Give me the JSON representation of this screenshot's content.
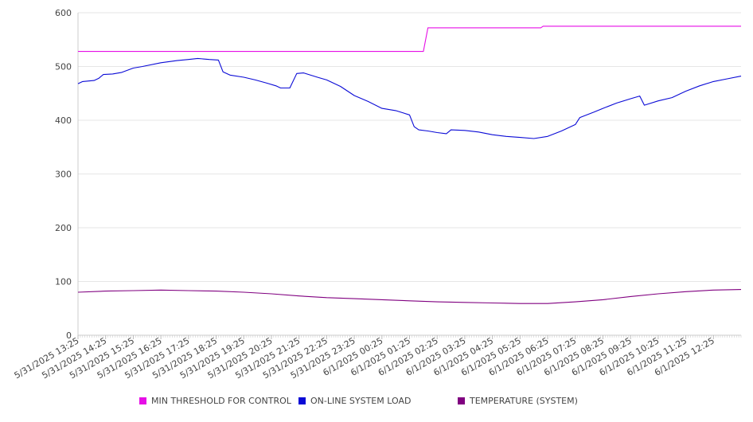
{
  "chart_data": {
    "type": "line",
    "title": "",
    "xlabel": "",
    "ylabel": "",
    "ylim": [
      0,
      600
    ],
    "yticks": [
      0,
      100,
      200,
      300,
      400,
      500,
      600
    ],
    "grid": true,
    "legend_position": "bottom",
    "xlim": [
      "5/31/2025 13:25",
      "6/1/2025 13:25"
    ],
    "tick_labels": [
      "5/31/2025 13:25",
      "5/31/2025 14:25",
      "5/31/2025 15:25",
      "5/31/2025 16:25",
      "5/31/2025 17:25",
      "5/31/2025 18:25",
      "5/31/2025 19:25",
      "5/31/2025 20:25",
      "5/31/2025 21:25",
      "5/31/2025 22:25",
      "5/31/2025 23:25",
      "6/1/2025 00:25",
      "6/1/2025 01:25",
      "6/1/2025 02:25",
      "6/1/2025 03:25",
      "6/1/2025 04:25",
      "6/1/2025 05:25",
      "6/1/2025 06:25",
      "6/1/2025 07:25",
      "6/1/2025 08:25",
      "6/1/2025 09:25",
      "6/1/2025 10:25",
      "6/1/2025 11:25",
      "6/1/2025 12:25"
    ],
    "series": [
      {
        "name": "MIN THRESHOLD FOR CONTROL",
        "color": "#e60fe6",
        "points": [
          [
            "5/31/2025 13:25",
            528
          ],
          [
            "6/1/2025 01:55",
            528
          ],
          [
            "6/1/2025 02:05",
            572
          ],
          [
            "6/1/2025 06:10",
            572
          ],
          [
            "6/1/2025 06:15",
            575
          ],
          [
            "6/1/2025 13:25",
            575
          ]
        ]
      },
      {
        "name": "ON-LINE SYSTEM LOAD",
        "color": "#0a0ad6",
        "points": [
          [
            "5/31/2025 13:25",
            468
          ],
          [
            "5/31/2025 13:35",
            472
          ],
          [
            "5/31/2025 14:00",
            474
          ],
          [
            "5/31/2025 14:10",
            478
          ],
          [
            "5/31/2025 14:20",
            485
          ],
          [
            "5/31/2025 14:40",
            486
          ],
          [
            "5/31/2025 15:00",
            489
          ],
          [
            "5/31/2025 15:25",
            497
          ],
          [
            "5/31/2025 15:45",
            500
          ],
          [
            "5/31/2025 16:25",
            507
          ],
          [
            "5/31/2025 17:00",
            511
          ],
          [
            "5/31/2025 17:25",
            513
          ],
          [
            "5/31/2025 17:45",
            515
          ],
          [
            "5/31/2025 18:10",
            513
          ],
          [
            "5/31/2025 18:30",
            512
          ],
          [
            "5/31/2025 18:40",
            490
          ],
          [
            "5/31/2025 18:55",
            484
          ],
          [
            "5/31/2025 19:25",
            480
          ],
          [
            "5/31/2025 19:50",
            475
          ],
          [
            "5/31/2025 20:15",
            469
          ],
          [
            "5/31/2025 20:35",
            464
          ],
          [
            "5/31/2025 20:45",
            460
          ],
          [
            "5/31/2025 21:05",
            460
          ],
          [
            "5/31/2025 21:20",
            487
          ],
          [
            "5/31/2025 21:35",
            488
          ],
          [
            "5/31/2025 22:05",
            480
          ],
          [
            "5/31/2025 22:25",
            475
          ],
          [
            "5/31/2025 22:55",
            463
          ],
          [
            "5/31/2025 23:25",
            446
          ],
          [
            "5/31/2025 23:55",
            435
          ],
          [
            "6/1/2025 00:25",
            422
          ],
          [
            "6/1/2025 00:55",
            418
          ],
          [
            "6/1/2025 01:25",
            410
          ],
          [
            "6/1/2025 01:35",
            388
          ],
          [
            "6/1/2025 01:45",
            382
          ],
          [
            "6/1/2025 02:05",
            380
          ],
          [
            "6/1/2025 02:25",
            377
          ],
          [
            "6/1/2025 02:45",
            375
          ],
          [
            "6/1/2025 02:55",
            382
          ],
          [
            "6/1/2025 03:25",
            381
          ],
          [
            "6/1/2025 03:55",
            378
          ],
          [
            "6/1/2025 04:25",
            373
          ],
          [
            "6/1/2025 04:55",
            370
          ],
          [
            "6/1/2025 05:25",
            368
          ],
          [
            "6/1/2025 05:55",
            366
          ],
          [
            "6/1/2025 06:25",
            370
          ],
          [
            "6/1/2025 06:55",
            380
          ],
          [
            "6/1/2025 07:25",
            392
          ],
          [
            "6/1/2025 07:35",
            405
          ],
          [
            "6/1/2025 08:05",
            415
          ],
          [
            "6/1/2025 08:25",
            422
          ],
          [
            "6/1/2025 08:55",
            432
          ],
          [
            "6/1/2025 09:25",
            440
          ],
          [
            "6/1/2025 09:45",
            445
          ],
          [
            "6/1/2025 09:55",
            428
          ],
          [
            "6/1/2025 10:25",
            436
          ],
          [
            "6/1/2025 10:55",
            442
          ],
          [
            "6/1/2025 11:25",
            454
          ],
          [
            "6/1/2025 11:55",
            464
          ],
          [
            "6/1/2025 12:25",
            472
          ],
          [
            "6/1/2025 12:55",
            477
          ],
          [
            "6/1/2025 13:25",
            482
          ]
        ]
      },
      {
        "name": "TEMPERATURE (SYSTEM)",
        "color": "#800080",
        "points": [
          [
            "5/31/2025 13:25",
            80
          ],
          [
            "5/31/2025 14:25",
            82
          ],
          [
            "5/31/2025 15:25",
            83
          ],
          [
            "5/31/2025 16:25",
            84
          ],
          [
            "5/31/2025 17:25",
            83
          ],
          [
            "5/31/2025 18:25",
            82
          ],
          [
            "5/31/2025 19:25",
            80
          ],
          [
            "5/31/2025 20:25",
            77
          ],
          [
            "5/31/2025 21:25",
            73
          ],
          [
            "5/31/2025 22:25",
            70
          ],
          [
            "5/31/2025 23:25",
            68
          ],
          [
            "6/1/2025 00:25",
            66
          ],
          [
            "6/1/2025 01:25",
            64
          ],
          [
            "6/1/2025 02:25",
            62
          ],
          [
            "6/1/2025 03:25",
            61
          ],
          [
            "6/1/2025 04:25",
            60
          ],
          [
            "6/1/2025 05:25",
            59
          ],
          [
            "6/1/2025 06:25",
            59
          ],
          [
            "6/1/2025 07:25",
            62
          ],
          [
            "6/1/2025 08:25",
            66
          ],
          [
            "6/1/2025 09:25",
            72
          ],
          [
            "6/1/2025 10:25",
            77
          ],
          [
            "6/1/2025 11:25",
            81
          ],
          [
            "6/1/2025 12:25",
            84
          ],
          [
            "6/1/2025 13:25",
            85
          ]
        ]
      }
    ]
  }
}
